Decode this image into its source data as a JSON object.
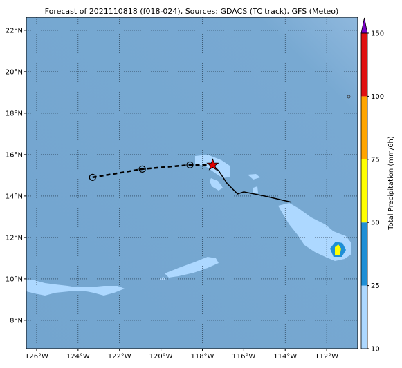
{
  "chart_data": {
    "type": "map",
    "title": "Forecast of 2021110818 (f018-024), Sources: GDACS (TC track), GFS (Meteo)",
    "xlim": [
      -126.5,
      -110.5
    ],
    "ylim": [
      6.63,
      22.63
    ],
    "xticks": [
      {
        "value": -126,
        "label": "126°W"
      },
      {
        "value": -124,
        "label": "124°W"
      },
      {
        "value": -122,
        "label": "122°W"
      },
      {
        "value": -120,
        "label": "120°W"
      },
      {
        "value": -118,
        "label": "118°W"
      },
      {
        "value": -116,
        "label": "116°W"
      },
      {
        "value": -114,
        "label": "114°W"
      },
      {
        "value": -112,
        "label": "112°W"
      }
    ],
    "yticks": [
      {
        "value": 8,
        "label": "8°N"
      },
      {
        "value": 10,
        "label": "10°N"
      },
      {
        "value": 12,
        "label": "12°N"
      },
      {
        "value": 14,
        "label": "14°N"
      },
      {
        "value": 16,
        "label": "16°N"
      },
      {
        "value": 18,
        "label": "18°N"
      },
      {
        "value": 20,
        "label": "20°N"
      },
      {
        "value": 22,
        "label": "22°N"
      }
    ],
    "grid": true,
    "forecast_track": {
      "x": [
        -123.3,
        -120.9,
        -118.6,
        -117.5
      ],
      "y": [
        14.9,
        15.3,
        15.5,
        15.5
      ],
      "color": "#000000"
    },
    "observed_track": {
      "x": [
        -117.5,
        -117.2,
        -116.8,
        -116.3,
        -116.0,
        -115.0,
        -113.7
      ],
      "y": [
        15.5,
        15.2,
        14.6,
        14.1,
        14.2,
        14.0,
        13.7
      ],
      "color": "#000000"
    },
    "current_position": {
      "x": -117.5,
      "y": 15.5,
      "color": "#e00000"
    },
    "colorbar": {
      "label": "Total Precipitation (mm/6h)",
      "ticks": [
        10,
        25,
        50,
        75,
        100,
        150
      ],
      "colors": [
        "#add8ff",
        "#1e8fd6",
        "#ffff00",
        "#ffa500",
        "#e01010"
      ],
      "extend_color": "#7b00c8"
    }
  }
}
